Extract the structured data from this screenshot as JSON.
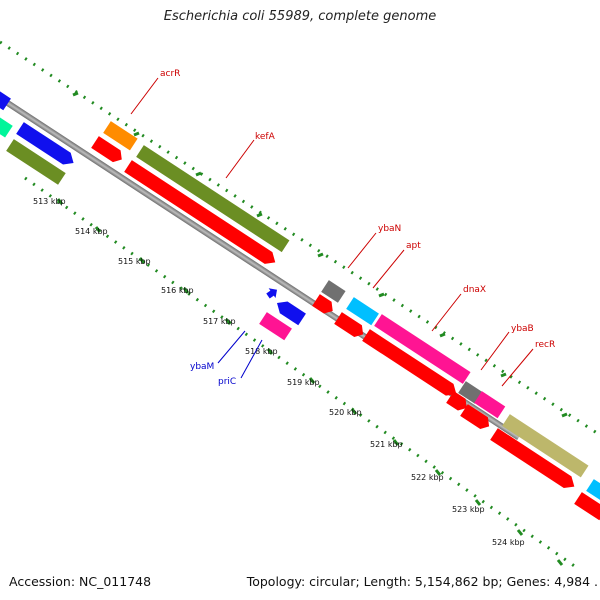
{
  "title": "Escherichia coli 55989, complete genome",
  "footer": {
    "accession": "Accession: NC_011748",
    "summary": "Topology: circular; Length: 5,154,862 bp; Genes: 4,984 ."
  },
  "ticks": [
    "513 kbp",
    "514 kbp",
    "515 kbp",
    "516 kbp",
    "517 kbp",
    "518 kbp",
    "519 kbp",
    "520 kbp",
    "521 kbp",
    "522 kbp",
    "523 kbp",
    "524 kbp"
  ],
  "genes": [
    {
      "name": "acrR",
      "color": "#cc0000"
    },
    {
      "name": "kefA",
      "color": "#cc0000"
    },
    {
      "name": "ybaN",
      "color": "#cc0000"
    },
    {
      "name": "apt",
      "color": "#cc0000"
    },
    {
      "name": "dnaX",
      "color": "#cc0000"
    },
    {
      "name": "ybaB",
      "color": "#cc0000"
    },
    {
      "name": "recR",
      "color": "#cc0000"
    },
    {
      "name": "ybaM",
      "color": "#0000cc"
    },
    {
      "name": "priC",
      "color": "#0000cc"
    }
  ],
  "colors": {
    "backbone": "#8c8c8c",
    "tick": "#228b22",
    "cds_forward": "#ff0000",
    "acrR": "#ff8c00",
    "kefA": "#6b8e23",
    "ybaN": "#707070",
    "apt": "#00bfff",
    "dnaX": "#ff1493",
    "ybaB": "#707070",
    "recR": "#ff1493",
    "ybaM": "#0000ff",
    "priC": "#ff1493",
    "khaki": "#bdb76b",
    "teal": "#00fa9a"
  }
}
